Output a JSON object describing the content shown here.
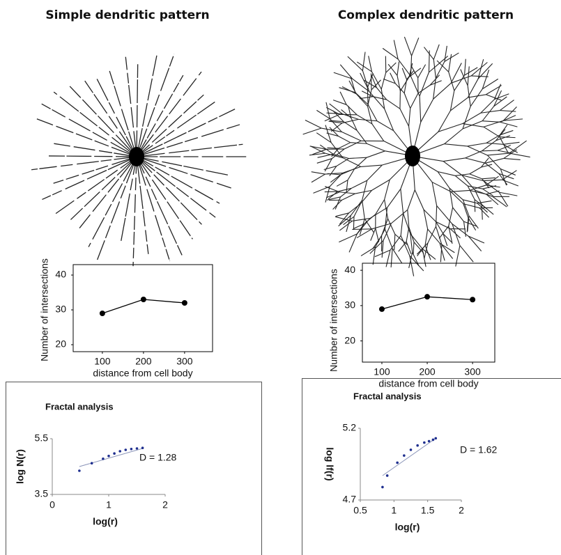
{
  "panel_titles": [
    "Simple dendritic pattern",
    "Complex dendritic pattern"
  ],
  "chart_data": [
    {
      "type": "line",
      "ylabel": "Number of intersections",
      "xlabel": "distance from cell body",
      "x": [
        100,
        200,
        300
      ],
      "values": [
        29,
        33,
        32
      ],
      "color": "#000000",
      "xlim": [
        29,
        368
      ],
      "ylim": [
        18,
        43
      ],
      "xticks": [
        100,
        200,
        300
      ],
      "yticks": [
        20,
        30,
        40
      ]
    },
    {
      "type": "line",
      "ylabel": "Number of intersections",
      "xlabel": "distance from cell body",
      "x": [
        100,
        200,
        300
      ],
      "values": [
        29,
        32.5,
        31.7
      ],
      "color": "#000000",
      "xlim": [
        57,
        349
      ],
      "ylim": [
        14,
        42
      ],
      "xticks": [
        100,
        200,
        300
      ],
      "yticks": [
        20,
        30,
        40
      ]
    },
    {
      "type": "scatter",
      "title": "Fractal analysis",
      "ylabel": "log N(r)",
      "xlabel": "log(r)",
      "annotation": "D = 1.28",
      "x": [
        0.48,
        0.7,
        0.9,
        1.0,
        1.1,
        1.2,
        1.3,
        1.4,
        1.5,
        1.6
      ],
      "values": [
        4.35,
        4.62,
        4.78,
        4.88,
        4.97,
        5.05,
        5.1,
        5.13,
        5.15,
        5.17
      ],
      "color": "#1f2f8f",
      "fit": {
        "x": [
          0.48,
          1.6
        ],
        "values": [
          4.5,
          5.15
        ],
        "color": "#8a94b8"
      },
      "xlim": [
        0,
        2
      ],
      "ylim": [
        3.5,
        5.5
      ],
      "xticks": [
        0,
        1,
        2
      ],
      "yticks": [
        3.5,
        5.5
      ]
    },
    {
      "type": "scatter",
      "title": "Fractal analysis",
      "ylabel": "log lf(r)",
      "xlabel": "log(r)",
      "annotation": "D = 1.62",
      "x": [
        0.83,
        0.9,
        1.05,
        1.15,
        1.25,
        1.35,
        1.45,
        1.52,
        1.58,
        1.62
      ],
      "values": [
        4.79,
        4.87,
        4.96,
        5.01,
        5.05,
        5.08,
        5.1,
        5.11,
        5.12,
        5.13
      ],
      "color": "#1f2f8f",
      "fit": {
        "x": [
          0.83,
          1.62
        ],
        "values": [
          4.87,
          5.13
        ],
        "color": "#8a94b8"
      },
      "xlim": [
        0.5,
        2
      ],
      "ylim": [
        4.7,
        5.2
      ],
      "xticks": [
        0.5,
        1,
        1.5,
        2
      ],
      "yticks": [
        4.7,
        5.2
      ]
    }
  ]
}
